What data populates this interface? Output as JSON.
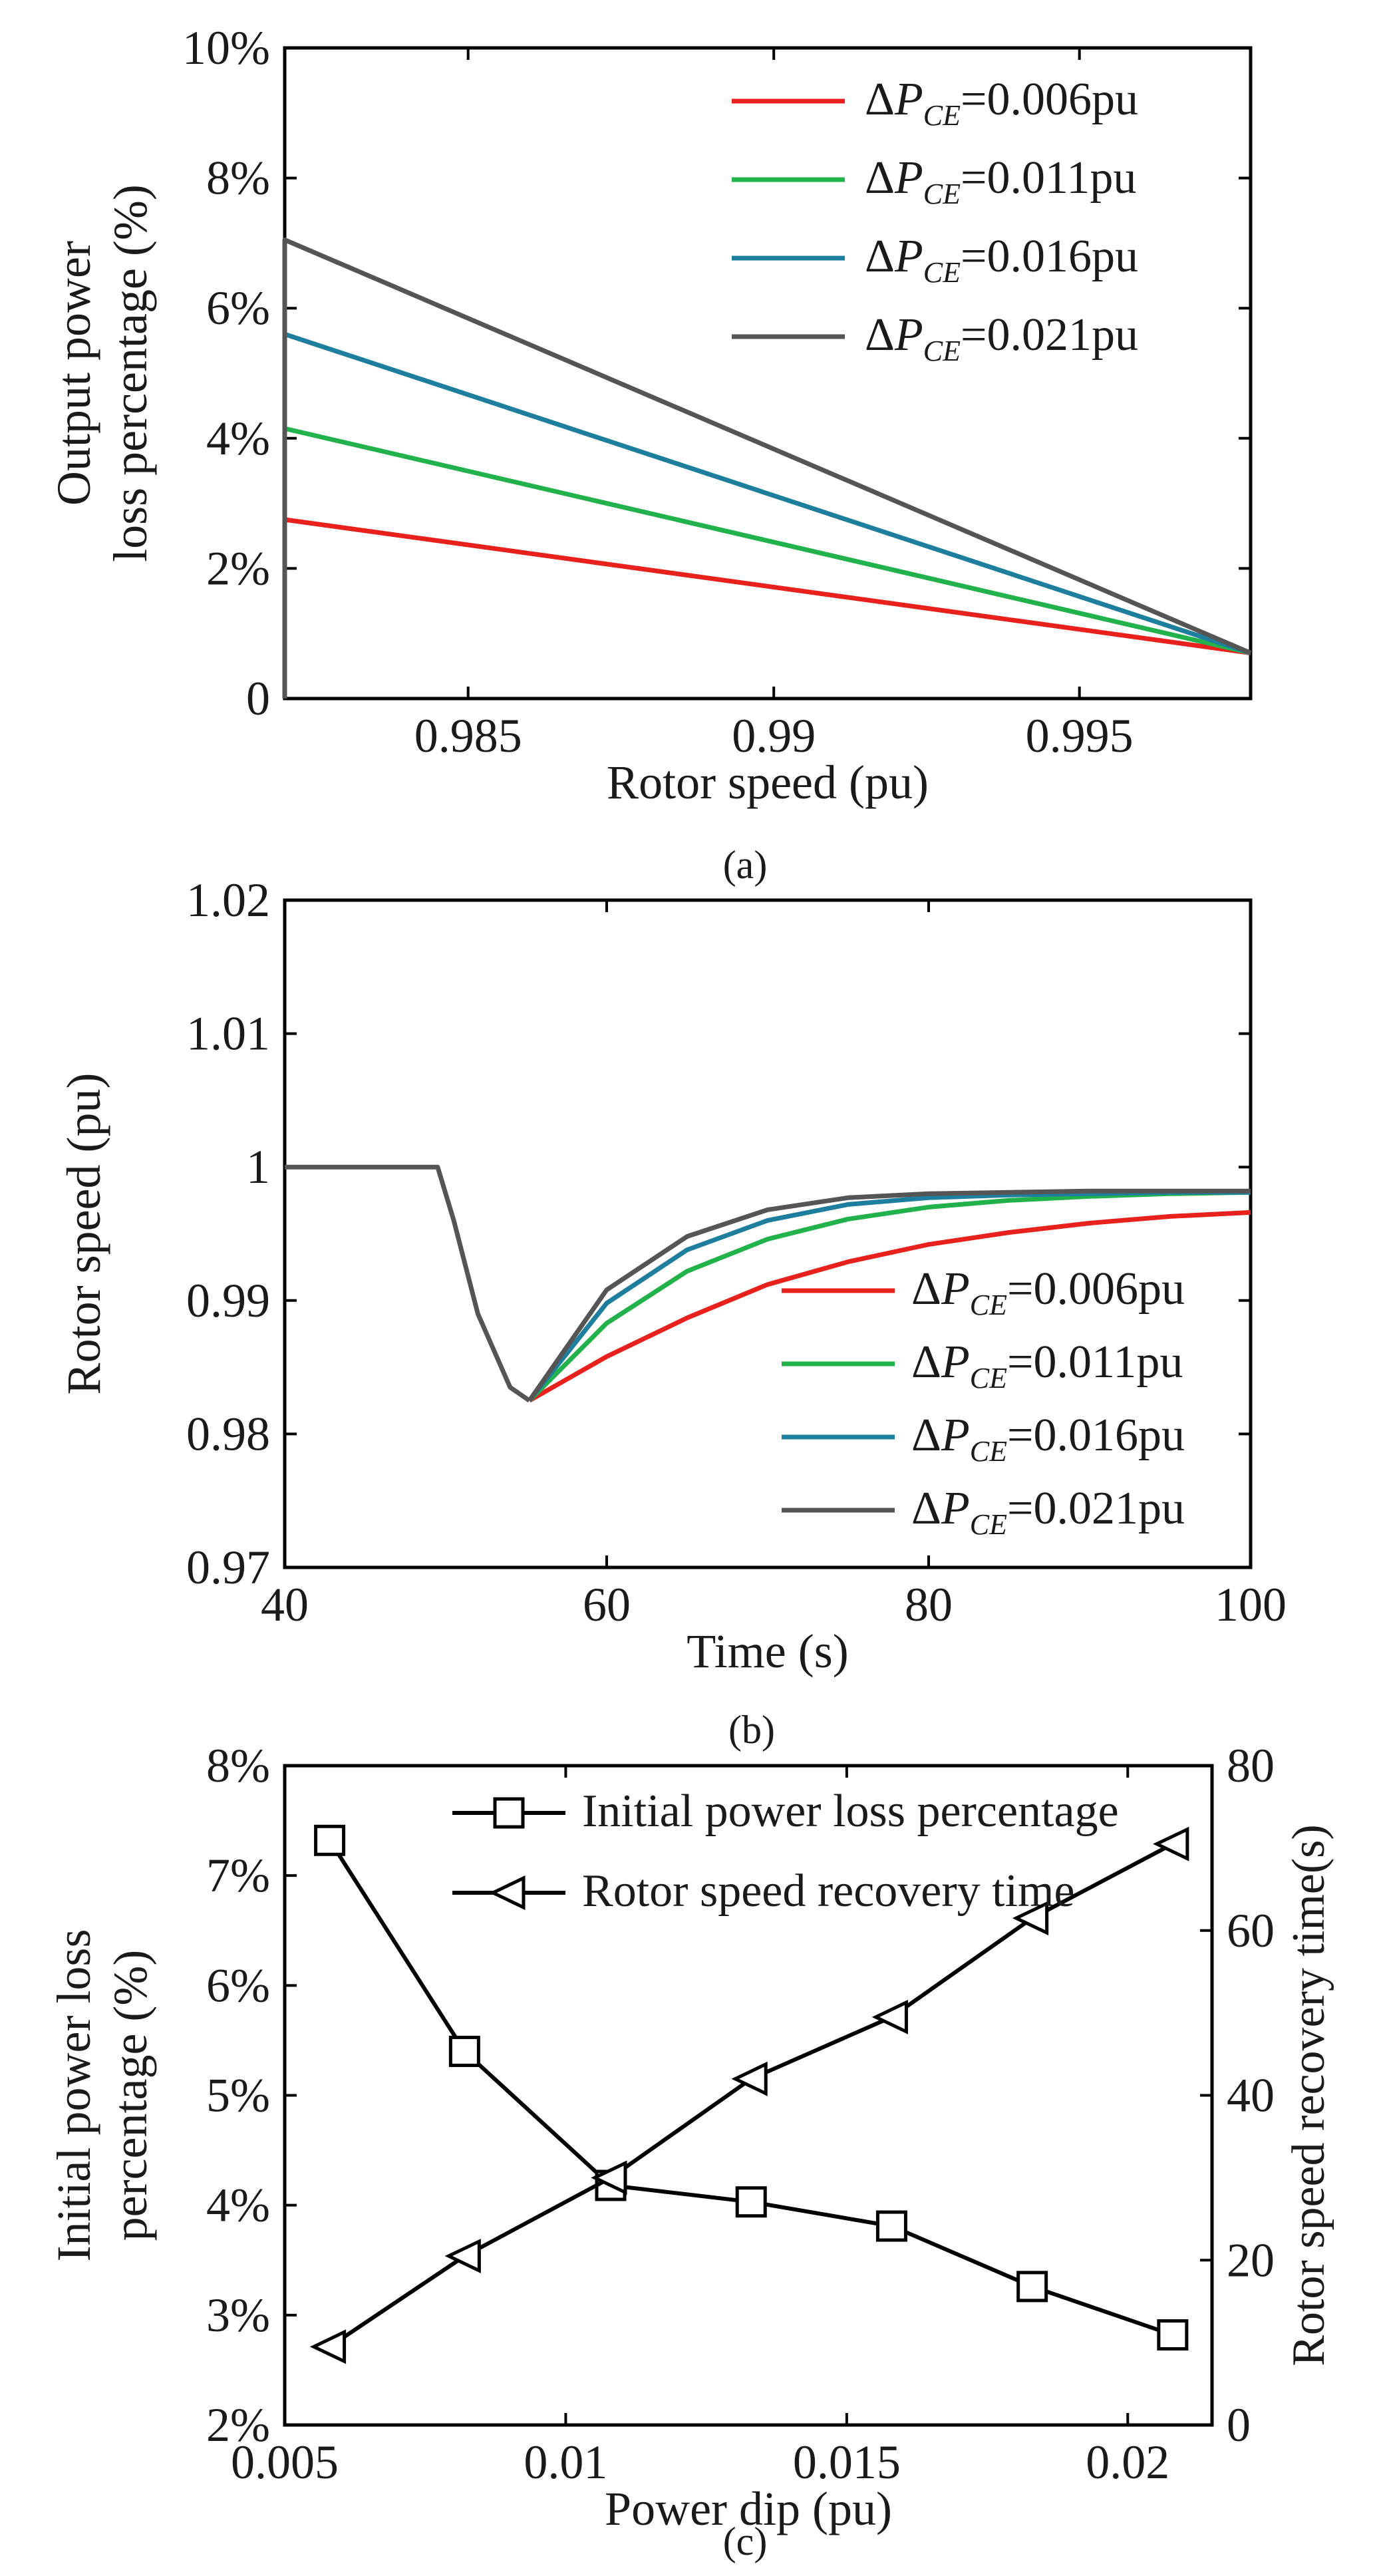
{
  "chart_data": [
    {
      "id": "a",
      "type": "line",
      "caption": "(a)",
      "xlabel": "Rotor speed (pu)",
      "ylabel_lines": [
        "Output power",
        "loss percentage (%)"
      ],
      "xlim": [
        0.982,
        0.9978
      ],
      "ylim": [
        0,
        10
      ],
      "xticks": [
        0.985,
        0.99,
        0.995
      ],
      "xtick_labels": [
        "0.985",
        "0.99",
        "0.995"
      ],
      "yticks": [
        0,
        2,
        4,
        6,
        8,
        10
      ],
      "ytick_labels": [
        "0",
        "2%",
        "4%",
        "6%",
        "8%",
        "10%"
      ],
      "legend_position": "top-right",
      "series": [
        {
          "name": "ΔP_CE=0.006pu",
          "legend_prefix": "ΔP",
          "legend_sub": "CE",
          "legend_suffix": "=0.006pu",
          "color": "#e8211d",
          "x": [
            0.982,
            0.9978
          ],
          "y": [
            2.75,
            0.7
          ],
          "drop_to_zero_at_start": true
        },
        {
          "name": "ΔP_CE=0.011pu",
          "legend_prefix": "ΔP",
          "legend_sub": "CE",
          "legend_suffix": "=0.011pu",
          "color": "#22b24c",
          "x": [
            0.982,
            0.9978
          ],
          "y": [
            4.15,
            0.7
          ],
          "drop_to_zero_at_start": true
        },
        {
          "name": "ΔP_CE=0.016pu",
          "legend_prefix": "ΔP",
          "legend_sub": "CE",
          "legend_suffix": "=0.016pu",
          "color": "#1e7e9e",
          "x": [
            0.982,
            0.9978
          ],
          "y": [
            5.6,
            0.7
          ],
          "drop_to_zero_at_start": true
        },
        {
          "name": "ΔP_CE=0.021pu",
          "legend_prefix": "ΔP",
          "legend_sub": "CE",
          "legend_suffix": "=0.021pu",
          "color": "#555555",
          "x": [
            0.982,
            0.9978
          ],
          "y": [
            7.05,
            0.7
          ],
          "drop_to_zero_at_start": true
        }
      ]
    },
    {
      "id": "b",
      "type": "line",
      "caption": "(b)",
      "xlabel": "Time (s)",
      "ylabel_lines": [
        "Rotor speed (pu)"
      ],
      "xlim": [
        40,
        100
      ],
      "ylim": [
        0.97,
        1.02
      ],
      "xticks": [
        40,
        60,
        80,
        100
      ],
      "xtick_labels": [
        "40",
        "60",
        "80",
        "100"
      ],
      "yticks": [
        0.97,
        0.98,
        0.99,
        1.0,
        1.01,
        1.02
      ],
      "ytick_labels": [
        "0.97",
        "0.98",
        "0.99",
        "1",
        "1.01",
        "1.02"
      ],
      "legend_position": "bottom-right",
      "shared_initial": {
        "x": [
          40,
          43,
          45,
          49,
          49.5,
          50.5,
          52,
          54,
          55.2
        ],
        "y": [
          1.0,
          1.0,
          1.0,
          1.0,
          1.0,
          0.996,
          0.989,
          0.9835,
          0.9825
        ]
      },
      "series": [
        {
          "name": "ΔP_CE=0.006pu",
          "legend_prefix": "ΔP",
          "legend_sub": "CE",
          "legend_suffix": "=0.006pu",
          "color": "#e8211d",
          "x": [
            55.2,
            60,
            65,
            70,
            75,
            80,
            85,
            90,
            95,
            100
          ],
          "y": [
            0.9825,
            0.9858,
            0.9887,
            0.9912,
            0.9929,
            0.9942,
            0.9951,
            0.9958,
            0.9963,
            0.9966
          ]
        },
        {
          "name": "ΔP_CE=0.011pu",
          "legend_prefix": "ΔP",
          "legend_sub": "CE",
          "legend_suffix": "=0.011pu",
          "color": "#22b24c",
          "x": [
            55.2,
            60,
            65,
            70,
            75,
            80,
            85,
            90,
            95,
            100
          ],
          "y": [
            0.9825,
            0.9883,
            0.9922,
            0.9946,
            0.9961,
            0.997,
            0.9975,
            0.9978,
            0.998,
            0.9981
          ]
        },
        {
          "name": "ΔP_CE=0.016pu",
          "legend_prefix": "ΔP",
          "legend_sub": "CE",
          "legend_suffix": "=0.016pu",
          "color": "#1e7e9e",
          "x": [
            55.2,
            60,
            65,
            70,
            75,
            80,
            85,
            90,
            95,
            100
          ],
          "y": [
            0.9825,
            0.9898,
            0.9938,
            0.996,
            0.9972,
            0.9977,
            0.9979,
            0.998,
            0.9981,
            0.9981
          ]
        },
        {
          "name": "ΔP_CE=0.021pu",
          "legend_prefix": "ΔP",
          "legend_sub": "CE",
          "legend_suffix": "=0.021pu",
          "color": "#555555",
          "x": [
            55.2,
            60,
            65,
            70,
            75,
            80,
            85,
            90,
            95,
            100
          ],
          "y": [
            0.9825,
            0.9908,
            0.9948,
            0.9968,
            0.9977,
            0.998,
            0.9981,
            0.9982,
            0.9982,
            0.9982
          ]
        }
      ]
    },
    {
      "id": "c",
      "type": "line",
      "caption": "(c)",
      "xlabel": "Power dip (pu)",
      "ylabel_lines": [
        "Initial power loss",
        "percentage (%)"
      ],
      "y2label": "Rotor speed recovery time(s)",
      "xlim": [
        0.005,
        0.0215
      ],
      "ylim": [
        2,
        8
      ],
      "y2lim": [
        0,
        80
      ],
      "xticks": [
        0.005,
        0.01,
        0.015,
        0.02
      ],
      "xtick_labels": [
        "0.005",
        "0.01",
        "0.015",
        "0.02"
      ],
      "yticks": [
        2,
        3,
        4,
        5,
        6,
        7,
        8
      ],
      "ytick_labels": [
        "2%",
        "3%",
        "4%",
        "5%",
        "6%",
        "7%",
        "8%"
      ],
      "y2ticks": [
        0,
        20,
        40,
        60,
        80
      ],
      "y2tick_labels": [
        "0",
        "20",
        "40",
        "60",
        "80"
      ],
      "legend_position": "top-right",
      "series": [
        {
          "name": "Initial power loss percentage",
          "marker": "square",
          "axis": "left",
          "color": "#000000",
          "x": [
            0.0058,
            0.0082,
            0.0108,
            0.0133,
            0.0158,
            0.0183,
            0.0208
          ],
          "y": [
            7.32,
            5.4,
            4.18,
            4.03,
            3.81,
            3.26,
            2.82
          ]
        },
        {
          "name": "Rotor speed recovery time",
          "marker": "triangle-left",
          "axis": "right",
          "color": "#000000",
          "x": [
            0.0058,
            0.0082,
            0.0108,
            0.0133,
            0.0158,
            0.0183,
            0.0208
          ],
          "y": [
            9.5,
            20.5,
            30,
            42,
            49.5,
            61.5,
            70.5
          ]
        }
      ]
    }
  ]
}
